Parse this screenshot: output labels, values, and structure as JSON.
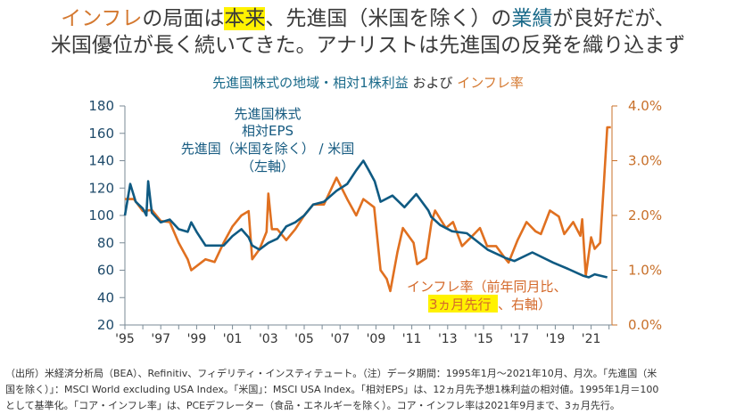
{
  "headline": {
    "line1": [
      {
        "text": "インフレ",
        "style": "or"
      },
      {
        "text": "の局面は",
        "style": ""
      },
      {
        "text": "本来",
        "style": "hl"
      },
      {
        "text": "、先進国（米国を除く）の",
        "style": ""
      },
      {
        "text": "業績",
        "style": "tl"
      },
      {
        "text": "が良好だが、",
        "style": ""
      }
    ],
    "line2": "米国優位が長く続いてきた。アナリストは先進国の反発を織り込まず"
  },
  "footnote": [
    "（出所）米経済分析局（BEA）、Refinitiv、フィデリティ・インスティテュート。（注）データ期間：1995年1月～2021年10月、月次。「先進国（米",
    "国を除く）」：MSCI World excluding USA Index。「米国」：MSCI USA Index。「相対EPS」は、12ヵ月先予想1株利益の相対値。1995年1月＝100",
    "として基準化。「コア・インフレ率」は、PCEデフレーター（食品・エネルギーを除く）。コア・インフレ率は2021年9月まで、3ヵ月先行。"
  ],
  "colors": {
    "eps": "#0f5a82",
    "inflation": "#e07020",
    "left_axis": "#1e4a6a",
    "right_axis": "#c8702a"
  },
  "chart_data": {
    "type": "line",
    "title_part1": "先進国株式の地域・相対1株利益",
    "title_part2": " および ",
    "title_part3": "インフレ率",
    "x_ticks": [
      "'95",
      "'97",
      "'99",
      "'01",
      "'03",
      "'05",
      "'07",
      "'09",
      "'11",
      "'13",
      "'15",
      "'17",
      "'19",
      "'21"
    ],
    "xlim": [
      1995,
      2022.2
    ],
    "y_left": {
      "ticks": [
        "180",
        "160",
        "140",
        "120",
        "100",
        "80",
        "60",
        "40",
        "20"
      ],
      "ylim": [
        20,
        180
      ]
    },
    "y_right": {
      "ticks": [
        "4.0%",
        "3.0%",
        "2.0%",
        "1.0%",
        "0.0%"
      ],
      "ylim": [
        0,
        4
      ]
    },
    "annotation_eps": [
      "先進国株式",
      "相対EPS",
      "先進国（米国を除く） / 米国",
      "（左軸）"
    ],
    "annotation_inflation": {
      "line1": "インフレ率（前年同月比、",
      "line2_highlight": "3ヵ月先行",
      "line2_rest": "、右軸）"
    },
    "series": [
      {
        "name": "先進国株式 相対EPS 先進国（米国を除く）/ 米国（左軸）",
        "axis": "left",
        "x": [
          1995.0,
          1995.3,
          1995.6,
          1996.0,
          1996.2,
          1996.3,
          1996.5,
          1997.0,
          1997.5,
          1998.0,
          1998.5,
          1998.7,
          1999.0,
          1999.5,
          2000.0,
          2000.5,
          2001.0,
          2001.5,
          2001.9,
          2002.1,
          2002.5,
          2003.0,
          2003.5,
          2004.0,
          2004.5,
          2005.0,
          2005.5,
          2006.1,
          2006.8,
          2007.4,
          2007.9,
          2008.3,
          2008.6,
          2008.93,
          2009.26,
          2009.92,
          2010.59,
          2011.25,
          2011.92,
          2012.08,
          2012.58,
          2013.24,
          2014.07,
          2015.23,
          2016.22,
          2016.72,
          2017.72,
          2018.88,
          2019.71,
          2020.54,
          2020.87,
          2021.2,
          2021.9
        ],
        "values": [
          100,
          123,
          110,
          105,
          100,
          125,
          102,
          95,
          97,
          90,
          88,
          95,
          88,
          78,
          78,
          78,
          85,
          90,
          84,
          78,
          75,
          80,
          83,
          92,
          95,
          100,
          108,
          110,
          118,
          123,
          133,
          140,
          133,
          125,
          110,
          114.5,
          106,
          115.6,
          103.7,
          99,
          93,
          88.5,
          87,
          75,
          69,
          66.7,
          73,
          65.6,
          61,
          56,
          54.8,
          57,
          54.8
        ]
      },
      {
        "name": "インフレ率（前年同月比、3ヵ月先行、右軸）",
        "axis": "right",
        "x": [
          1995.0,
          1995.5,
          1996.0,
          1996.5,
          1997.0,
          1997.5,
          1998.0,
          1998.5,
          1998.7,
          1999.5,
          2000.0,
          2000.5,
          2001.0,
          2001.5,
          2001.9,
          2002.1,
          2002.5,
          2002.9,
          2003.0,
          2003.2,
          2003.5,
          2004.0,
          2004.5,
          2005.0,
          2005.5,
          2006.1,
          2006.8,
          2007.4,
          2007.9,
          2008.3,
          2008.9,
          2009.26,
          2009.6,
          2009.8,
          2010.2,
          2010.5,
          2011.1,
          2011.3,
          2011.8,
          2012.1,
          2012.3,
          2012.9,
          2013.3,
          2013.8,
          2014.3,
          2014.8,
          2015.2,
          2015.7,
          2016.2,
          2016.4,
          2016.9,
          2017.4,
          2017.9,
          2018.2,
          2018.7,
          2019.2,
          2019.5,
          2020.0,
          2020.4,
          2020.5,
          2020.7,
          2021.0,
          2021.2,
          2021.5,
          2021.7,
          2021.9,
          2022.1
        ],
        "values": [
          2.3,
          2.3,
          2.08,
          2.1,
          1.9,
          1.88,
          1.5,
          1.2,
          1.0,
          1.2,
          1.15,
          1.5,
          1.8,
          2.0,
          2.08,
          1.2,
          1.38,
          1.7,
          2.4,
          1.75,
          1.75,
          1.55,
          1.75,
          2.0,
          2.2,
          2.2,
          2.69,
          2.3,
          2.0,
          2.3,
          2.15,
          1.0,
          0.84,
          0.62,
          1.33,
          1.77,
          1.5,
          1.11,
          1.22,
          1.88,
          2.09,
          1.77,
          1.88,
          1.44,
          1.6,
          1.77,
          1.44,
          1.44,
          1.22,
          1.14,
          1.55,
          1.88,
          1.71,
          1.66,
          2.09,
          1.98,
          1.66,
          1.88,
          1.63,
          1.93,
          0.9,
          1.6,
          1.39,
          1.5,
          2.53,
          3.61,
          3.61
        ]
      }
    ]
  }
}
